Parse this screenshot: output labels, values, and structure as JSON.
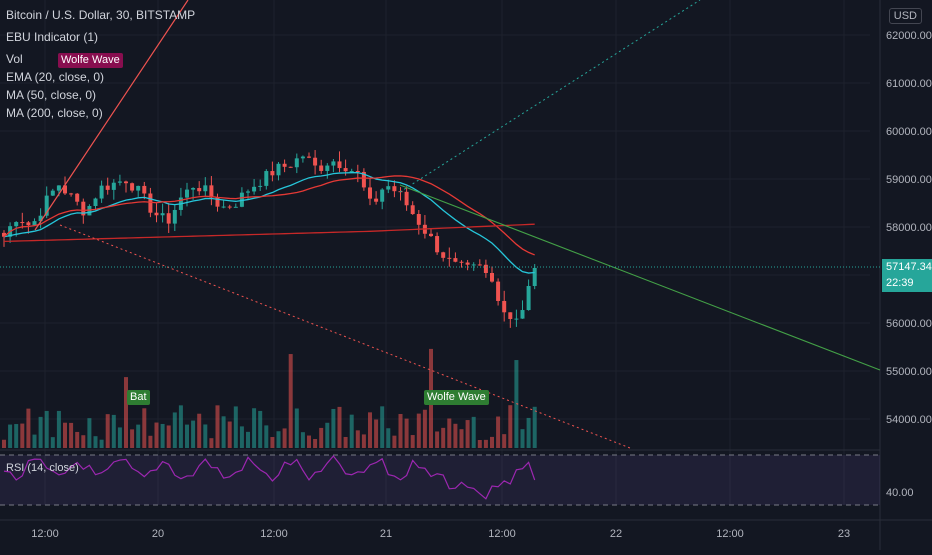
{
  "header": {
    "symbol": "Bitcoin / U.S. Dollar, 30, BITSTAMP",
    "indicators": [
      "EBU Indicator (1)",
      "Vol",
      "EMA (20, close, 0)",
      "MA (50, close, 0)",
      "MA (200, close, 0)"
    ]
  },
  "currency": "USD",
  "tags": {
    "wolfe_top": "Wolfe Wave",
    "bat": "Bat",
    "wolfe_bottom": "Wolfe Wave"
  },
  "rsi": {
    "label": "RSI (14, close)",
    "axis_label": "40.00"
  },
  "last_price": {
    "value": "57147.34",
    "countdown": "22:39"
  },
  "colors": {
    "up": "#26a69a",
    "down": "#ef5350",
    "ema": "#26c6da",
    "ma50": "#e53935",
    "ma200": "#c62828",
    "rsi": "#9c27b0",
    "trend_green": "#43a047",
    "wolfe_tag": "#880e4f",
    "bat_tag": "#2e7d32"
  },
  "chart_data": {
    "type": "candlestick",
    "title": "Bitcoin / U.S. Dollar, 30, BITSTAMP",
    "x_ticks": [
      "12:00",
      "20",
      "12:00",
      "21",
      "12:00",
      "22",
      "12:00",
      "23"
    ],
    "y_ticks": [
      62000,
      61000,
      60000,
      59000,
      58000,
      57000,
      56000,
      55000,
      54000
    ],
    "y_tick_labels": [
      "62000.00",
      "61000.00",
      "60000.00",
      "59000.00",
      "58000.00",
      "",
      "56000.00",
      "55000.00",
      "54000.00"
    ],
    "ylim": [
      53400,
      62400
    ],
    "close_path": [
      57800,
      58250,
      58000,
      58500,
      58900,
      58600,
      58300,
      58800,
      58900,
      59000,
      58700,
      58300,
      58100,
      58600,
      58900,
      58700,
      58400,
      58500,
      58800,
      59000,
      59200,
      59300,
      59500,
      59200,
      59400,
      59300,
      59100,
      58400,
      58900,
      58700,
      58300,
      57900,
      57500,
      57200,
      57100,
      57150,
      56800,
      56100,
      56200,
      57147
    ],
    "rsi_levels": {
      "upper": 70,
      "lower": 30,
      "last": 40
    },
    "grid": true
  }
}
